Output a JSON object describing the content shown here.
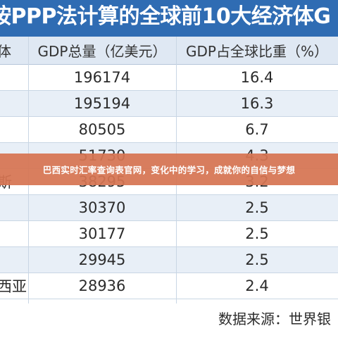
{
  "title": "按PPP法计算的全球前10大经济体G",
  "table": {
    "headers": [
      "体",
      "GDP总量（亿美元）",
      "GDP占全球比重（%）"
    ],
    "rows": [
      {
        "name": "",
        "gdp": "196174",
        "share": "16.4"
      },
      {
        "name": "",
        "gdp": "195194",
        "share": "16.3"
      },
      {
        "name": "",
        "gdp": "80505",
        "share": "6.7"
      },
      {
        "name": "",
        "gdp": "51730",
        "share": "4.3"
      },
      {
        "name": "斯",
        "gdp": "38295",
        "share": "3.2"
      },
      {
        "name": "",
        "gdp": "30370",
        "share": "2.5"
      },
      {
        "name": "",
        "gdp": "30177",
        "share": "2.5"
      },
      {
        "name": "",
        "gdp": "29945",
        "share": "2.5"
      },
      {
        "name": "西亚",
        "gdp": "28936",
        "share": "2.4"
      }
    ]
  },
  "source": "数据来源：世界银",
  "banner": "巴西实时汇率查询表官网，变化中的学习，成就你的自信与梦想"
}
